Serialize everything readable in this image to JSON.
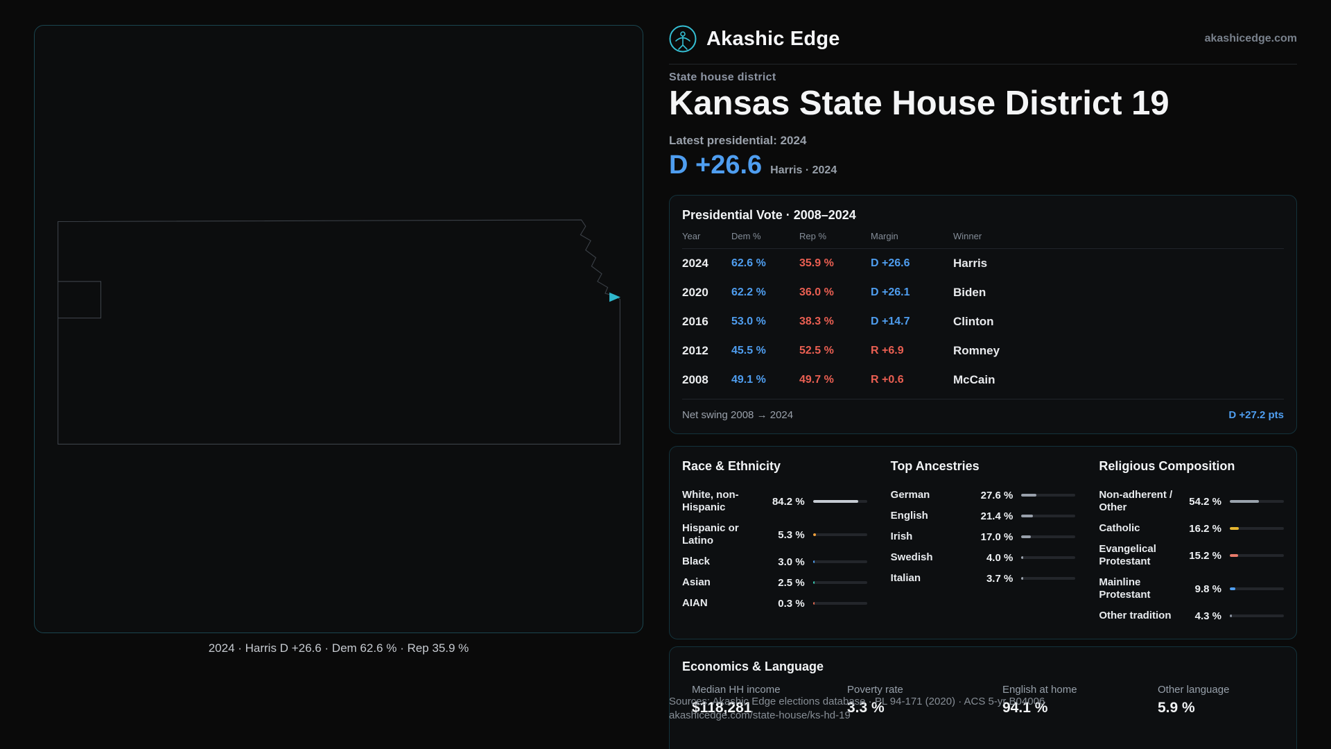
{
  "brand": {
    "name": "Akashic Edge",
    "domain": "akashicedge.com"
  },
  "page": {
    "eyebrow": "State house district",
    "title": "Kansas State House District 19",
    "latest_label": "Latest presidential: 2024",
    "headline_margin": "D +26.6",
    "headline_context": "Harris · 2024"
  },
  "map": {
    "caption": "2024 · Harris D +26.6 · Dem 62.6 % · Rep 35.9 %",
    "marker": "district-location"
  },
  "presidential_table": {
    "title": "Presidential Vote · 2008–2024",
    "columns": [
      "Year",
      "Dem %",
      "Rep %",
      "Margin",
      "Winner"
    ],
    "rows": [
      {
        "year": "2024",
        "dem": "62.6 %",
        "rep": "35.9 %",
        "margin": "D +26.6",
        "party": "D",
        "winner": "Harris"
      },
      {
        "year": "2020",
        "dem": "62.2 %",
        "rep": "36.0 %",
        "margin": "D +26.1",
        "party": "D",
        "winner": "Biden"
      },
      {
        "year": "2016",
        "dem": "53.0 %",
        "rep": "38.3 %",
        "margin": "D +14.7",
        "party": "D",
        "winner": "Clinton"
      },
      {
        "year": "2012",
        "dem": "45.5 %",
        "rep": "52.5 %",
        "margin": "R +6.9",
        "party": "R",
        "winner": "Romney"
      },
      {
        "year": "2008",
        "dem": "49.1 %",
        "rep": "49.7 %",
        "margin": "R +0.6",
        "party": "R",
        "winner": "McCain"
      }
    ],
    "footer": {
      "label": "Net swing 2008 → 2024",
      "value": "D +27.2 pts"
    }
  },
  "demographics": [
    {
      "title": "Race & Ethnicity",
      "rows": [
        {
          "label": "White, non-Hispanic",
          "value": "84.2 %",
          "pct": 84.2,
          "color": "#c6ccd4"
        },
        {
          "label": "Hispanic or Latino",
          "value": "5.3 %",
          "pct": 5.3,
          "color": "#f0a03c"
        },
        {
          "label": "Black",
          "value": "3.0 %",
          "pct": 3.0,
          "color": "#4f9ef0"
        },
        {
          "label": "Asian",
          "value": "2.5 %",
          "pct": 2.5,
          "color": "#35c9b0"
        },
        {
          "label": "AIAN",
          "value": "0.3 %",
          "pct": 0.3,
          "color": "#e2684f"
        }
      ]
    },
    {
      "title": "Top Ancestries",
      "rows": [
        {
          "label": "German",
          "value": "27.6 %",
          "pct": 27.6,
          "color": "#98a0ab"
        },
        {
          "label": "English",
          "value": "21.4 %",
          "pct": 21.4,
          "color": "#98a0ab"
        },
        {
          "label": "Irish",
          "value": "17.0 %",
          "pct": 17.0,
          "color": "#98a0ab"
        },
        {
          "label": "Swedish",
          "value": "4.0 %",
          "pct": 4.0,
          "color": "#98a0ab"
        },
        {
          "label": "Italian",
          "value": "3.7 %",
          "pct": 3.7,
          "color": "#98a0ab"
        }
      ]
    },
    {
      "title": "Religious Composition",
      "rows": [
        {
          "label": "Non-adherent / Other",
          "value": "54.2 %",
          "pct": 54.2,
          "color": "#9aa3ad"
        },
        {
          "label": "Catholic",
          "value": "16.2 %",
          "pct": 16.2,
          "color": "#e5b52f"
        },
        {
          "label": "Evangelical Protestant",
          "value": "15.2 %",
          "pct": 15.2,
          "color": "#e87b6b"
        },
        {
          "label": "Mainline Protestant",
          "value": "9.8 %",
          "pct": 9.8,
          "color": "#4f9ef0"
        },
        {
          "label": "Other tradition",
          "value": "4.3 %",
          "pct": 4.3,
          "color": "#8b93a0"
        }
      ]
    }
  ],
  "economics": {
    "title": "Economics & Language",
    "stats": [
      {
        "label": "Median HH income",
        "value": "$118,281"
      },
      {
        "label": "Poverty rate",
        "value": "3.3 %"
      },
      {
        "label": "English at home",
        "value": "94.1 %"
      },
      {
        "label": "Other language",
        "value": "5.9 %"
      }
    ]
  },
  "footer": {
    "line1": "Sources: Akashic Edge elections database · PL 94-171 (2020) · ACS 5-yr B04006",
    "line2": "akashicedge.com/state-house/ks-hd-19"
  },
  "colors": {
    "background": "#0a0a0a",
    "card_border": "#14333c",
    "map_border": "#1a454f",
    "dem_blue": "#4f9ef0",
    "rep_red": "#ea5f52",
    "accent_teal": "#35bfd4"
  }
}
